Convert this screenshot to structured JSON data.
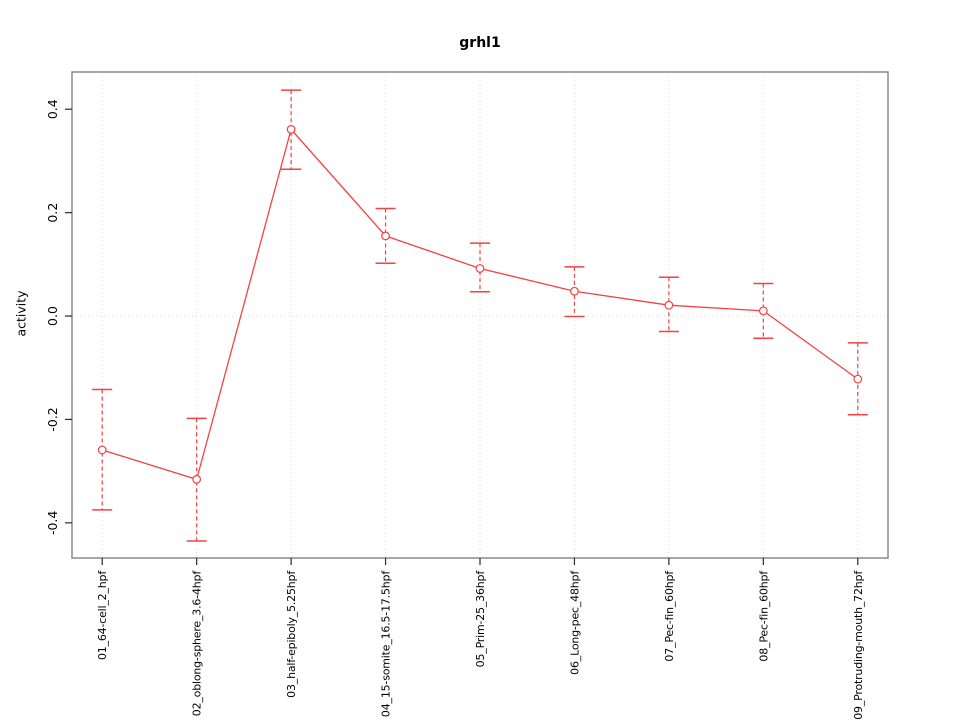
{
  "chart_data": {
    "type": "line",
    "title": "grhl1",
    "ylabel": "activity",
    "xlabel": "",
    "categories": [
      "01_64-cell_2_hpf",
      "02_oblong-sphere_3.6-4hpf",
      "03_half-epiboly_5.25hpf",
      "04_15-somite_16.5-17.5hpf",
      "05_Prim-25_36hpf",
      "06_Long-pec_48hpf",
      "07_Pec-fin_60hpf",
      "08_Pec-fin_60hpf",
      "09_Protruding-mouth_72hpf"
    ],
    "series": [
      {
        "name": "grhl1",
        "values": [
          -0.259,
          -0.316,
          0.361,
          0.155,
          0.092,
          0.048,
          0.021,
          0.01,
          -0.122
        ],
        "err_low": [
          -0.375,
          -0.435,
          0.284,
          0.102,
          0.047,
          -0.001,
          -0.03,
          -0.043,
          -0.191
        ],
        "err_high": [
          -0.142,
          -0.198,
          0.437,
          0.208,
          0.141,
          0.095,
          0.075,
          0.063,
          -0.052
        ]
      }
    ],
    "yticks": [
      -0.4,
      -0.2,
      0.0,
      0.2,
      0.4
    ],
    "ylim": [
      -0.468,
      0.472
    ],
    "marker": "open-circle",
    "grid_vertical_at_categories": true,
    "grid_zero_line": true,
    "legend": "none",
    "colors": {
      "series": "#f04343",
      "grid": "#d9d9d9",
      "frame": "#8a8a8a",
      "tick": "#2b2b2b",
      "text": "#000000",
      "background": "#ffffff"
    }
  }
}
